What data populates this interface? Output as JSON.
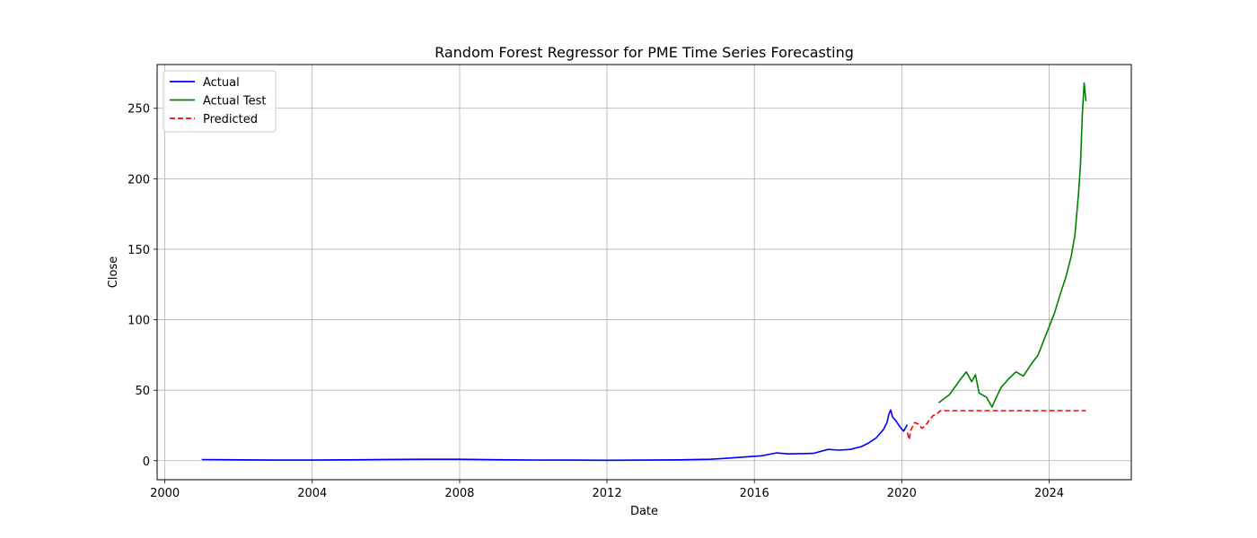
{
  "chart_data": {
    "type": "line",
    "title": "Random Forest Regressor for PME Time Series Forecasting",
    "xlabel": "Date",
    "ylabel": "Close",
    "xlim": [
      1999.79,
      2026.23
    ],
    "ylim": [
      -13.5,
      281.0
    ],
    "xticks": [
      2000,
      2004,
      2008,
      2012,
      2016,
      2020,
      2024
    ],
    "yticks": [
      0,
      50,
      100,
      150,
      200,
      250
    ],
    "grid": true,
    "legend_position": "upper-left",
    "series": [
      {
        "name": "Actual",
        "color": "#0000ff",
        "dash": "solid",
        "x": [
          2001.0,
          2002.0,
          2003.0,
          2004.0,
          2005.0,
          2006.0,
          2007.0,
          2008.0,
          2009.0,
          2010.0,
          2011.0,
          2012.0,
          2013.0,
          2014.0,
          2014.8,
          2015.3,
          2015.8,
          2016.2,
          2016.6,
          2016.9,
          2017.3,
          2017.6,
          2018.0,
          2018.3,
          2018.6,
          2018.9,
          2019.1,
          2019.3,
          2019.5,
          2019.6,
          2019.65,
          2019.7,
          2019.75,
          2019.85,
          2019.95,
          2020.05,
          2020.15
        ],
        "y": [
          0.8,
          0.6,
          0.4,
          0.4,
          0.6,
          0.9,
          1.0,
          1.0,
          0.7,
          0.5,
          0.4,
          0.3,
          0.4,
          0.6,
          1.0,
          1.8,
          2.8,
          3.5,
          5.5,
          4.8,
          5.0,
          5.2,
          8.0,
          7.5,
          8.0,
          10.0,
          12.5,
          16.0,
          22.0,
          27.0,
          33.0,
          36.0,
          31.0,
          28.0,
          24.0,
          21.0,
          25.5
        ]
      },
      {
        "name": "Actual Test",
        "color": "#008000",
        "dash": "solid",
        "x": [
          2021.0,
          2021.3,
          2021.6,
          2021.75,
          2021.9,
          2022.0,
          2022.1,
          2022.3,
          2022.45,
          2022.55,
          2022.7,
          2022.9,
          2023.1,
          2023.3,
          2023.5,
          2023.7,
          2023.85,
          2024.0,
          2024.15,
          2024.3,
          2024.45,
          2024.6,
          2024.7,
          2024.8,
          2024.85,
          2024.9,
          2024.95,
          2025.0
        ],
        "y": [
          41.0,
          47.0,
          58.0,
          63.0,
          56.0,
          61.0,
          48.0,
          45.0,
          38.0,
          44.0,
          52.0,
          58.0,
          63.0,
          60.0,
          68.0,
          75.0,
          85.0,
          95.0,
          105.0,
          118.0,
          130.0,
          145.0,
          160.0,
          190.0,
          210.0,
          245.0,
          268.0,
          255.0
        ]
      },
      {
        "name": "Predicted",
        "color": "#ff0000",
        "dash": "dashed",
        "x": [
          2020.15,
          2020.2,
          2020.25,
          2020.35,
          2020.45,
          2020.55,
          2020.65,
          2020.75,
          2020.85,
          2020.95,
          2021.05,
          2021.5,
          2022.0,
          2022.5,
          2023.0,
          2023.5,
          2024.0,
          2024.5,
          2025.0
        ],
        "y": [
          20.0,
          15.0,
          22.0,
          27.0,
          26.0,
          23.0,
          25.0,
          29.0,
          32.0,
          33.0,
          35.5,
          35.5,
          35.5,
          35.5,
          35.5,
          35.5,
          35.5,
          35.5,
          35.5
        ]
      }
    ]
  }
}
